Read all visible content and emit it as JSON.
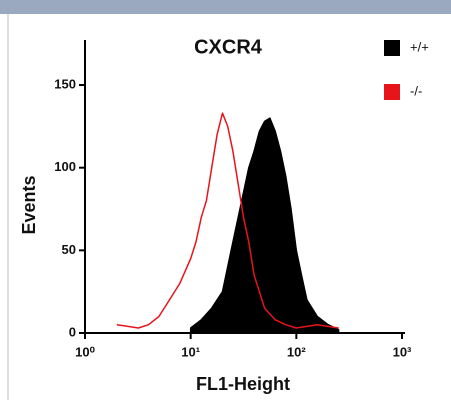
{
  "chart_data": {
    "type": "line",
    "title": "CXCR4",
    "xlabel": "FL1-Height",
    "ylabel": "Events",
    "xscale": "log",
    "xlim": [
      1,
      1000
    ],
    "xticks": [
      {
        "value": 1,
        "label": "10⁰"
      },
      {
        "value": 10,
        "label": "10¹"
      },
      {
        "value": 100,
        "label": "10²"
      },
      {
        "value": 1000,
        "label": "10³"
      }
    ],
    "ylim": [
      0,
      175
    ],
    "yticks": [
      0,
      50,
      100,
      150
    ],
    "legend": "top-right",
    "series": [
      {
        "name": "+/+",
        "color": "#000000",
        "filled": true,
        "x": [
          10,
          12.6,
          15.8,
          20,
          22.4,
          25.1,
          28.2,
          31.6,
          35.5,
          39.8,
          44.7,
          50.1,
          56.2,
          63.1,
          70.8,
          79.4,
          89.1,
          100,
          112,
          126,
          158,
          200,
          251
        ],
        "values": [
          3,
          8,
          15,
          25,
          40,
          55,
          70,
          85,
          100,
          110,
          122,
          128,
          130,
          122,
          110,
          95,
          75,
          50,
          35,
          20,
          10,
          5,
          2
        ]
      },
      {
        "name": "-/-",
        "color": "#e8141b",
        "filled": false,
        "x": [
          2,
          3.2,
          4,
          5,
          6.3,
          7.9,
          10,
          11.2,
          12.6,
          14.1,
          15.8,
          17.8,
          20,
          22.4,
          25.1,
          28.2,
          31.6,
          35.5,
          39.8,
          44.7,
          50.1,
          63.1,
          79.4,
          100,
          158,
          251
        ],
        "values": [
          5,
          3,
          5,
          10,
          20,
          30,
          45,
          55,
          70,
          80,
          100,
          120,
          133,
          125,
          110,
          90,
          70,
          55,
          35,
          25,
          15,
          8,
          5,
          3,
          5,
          3
        ]
      }
    ]
  }
}
